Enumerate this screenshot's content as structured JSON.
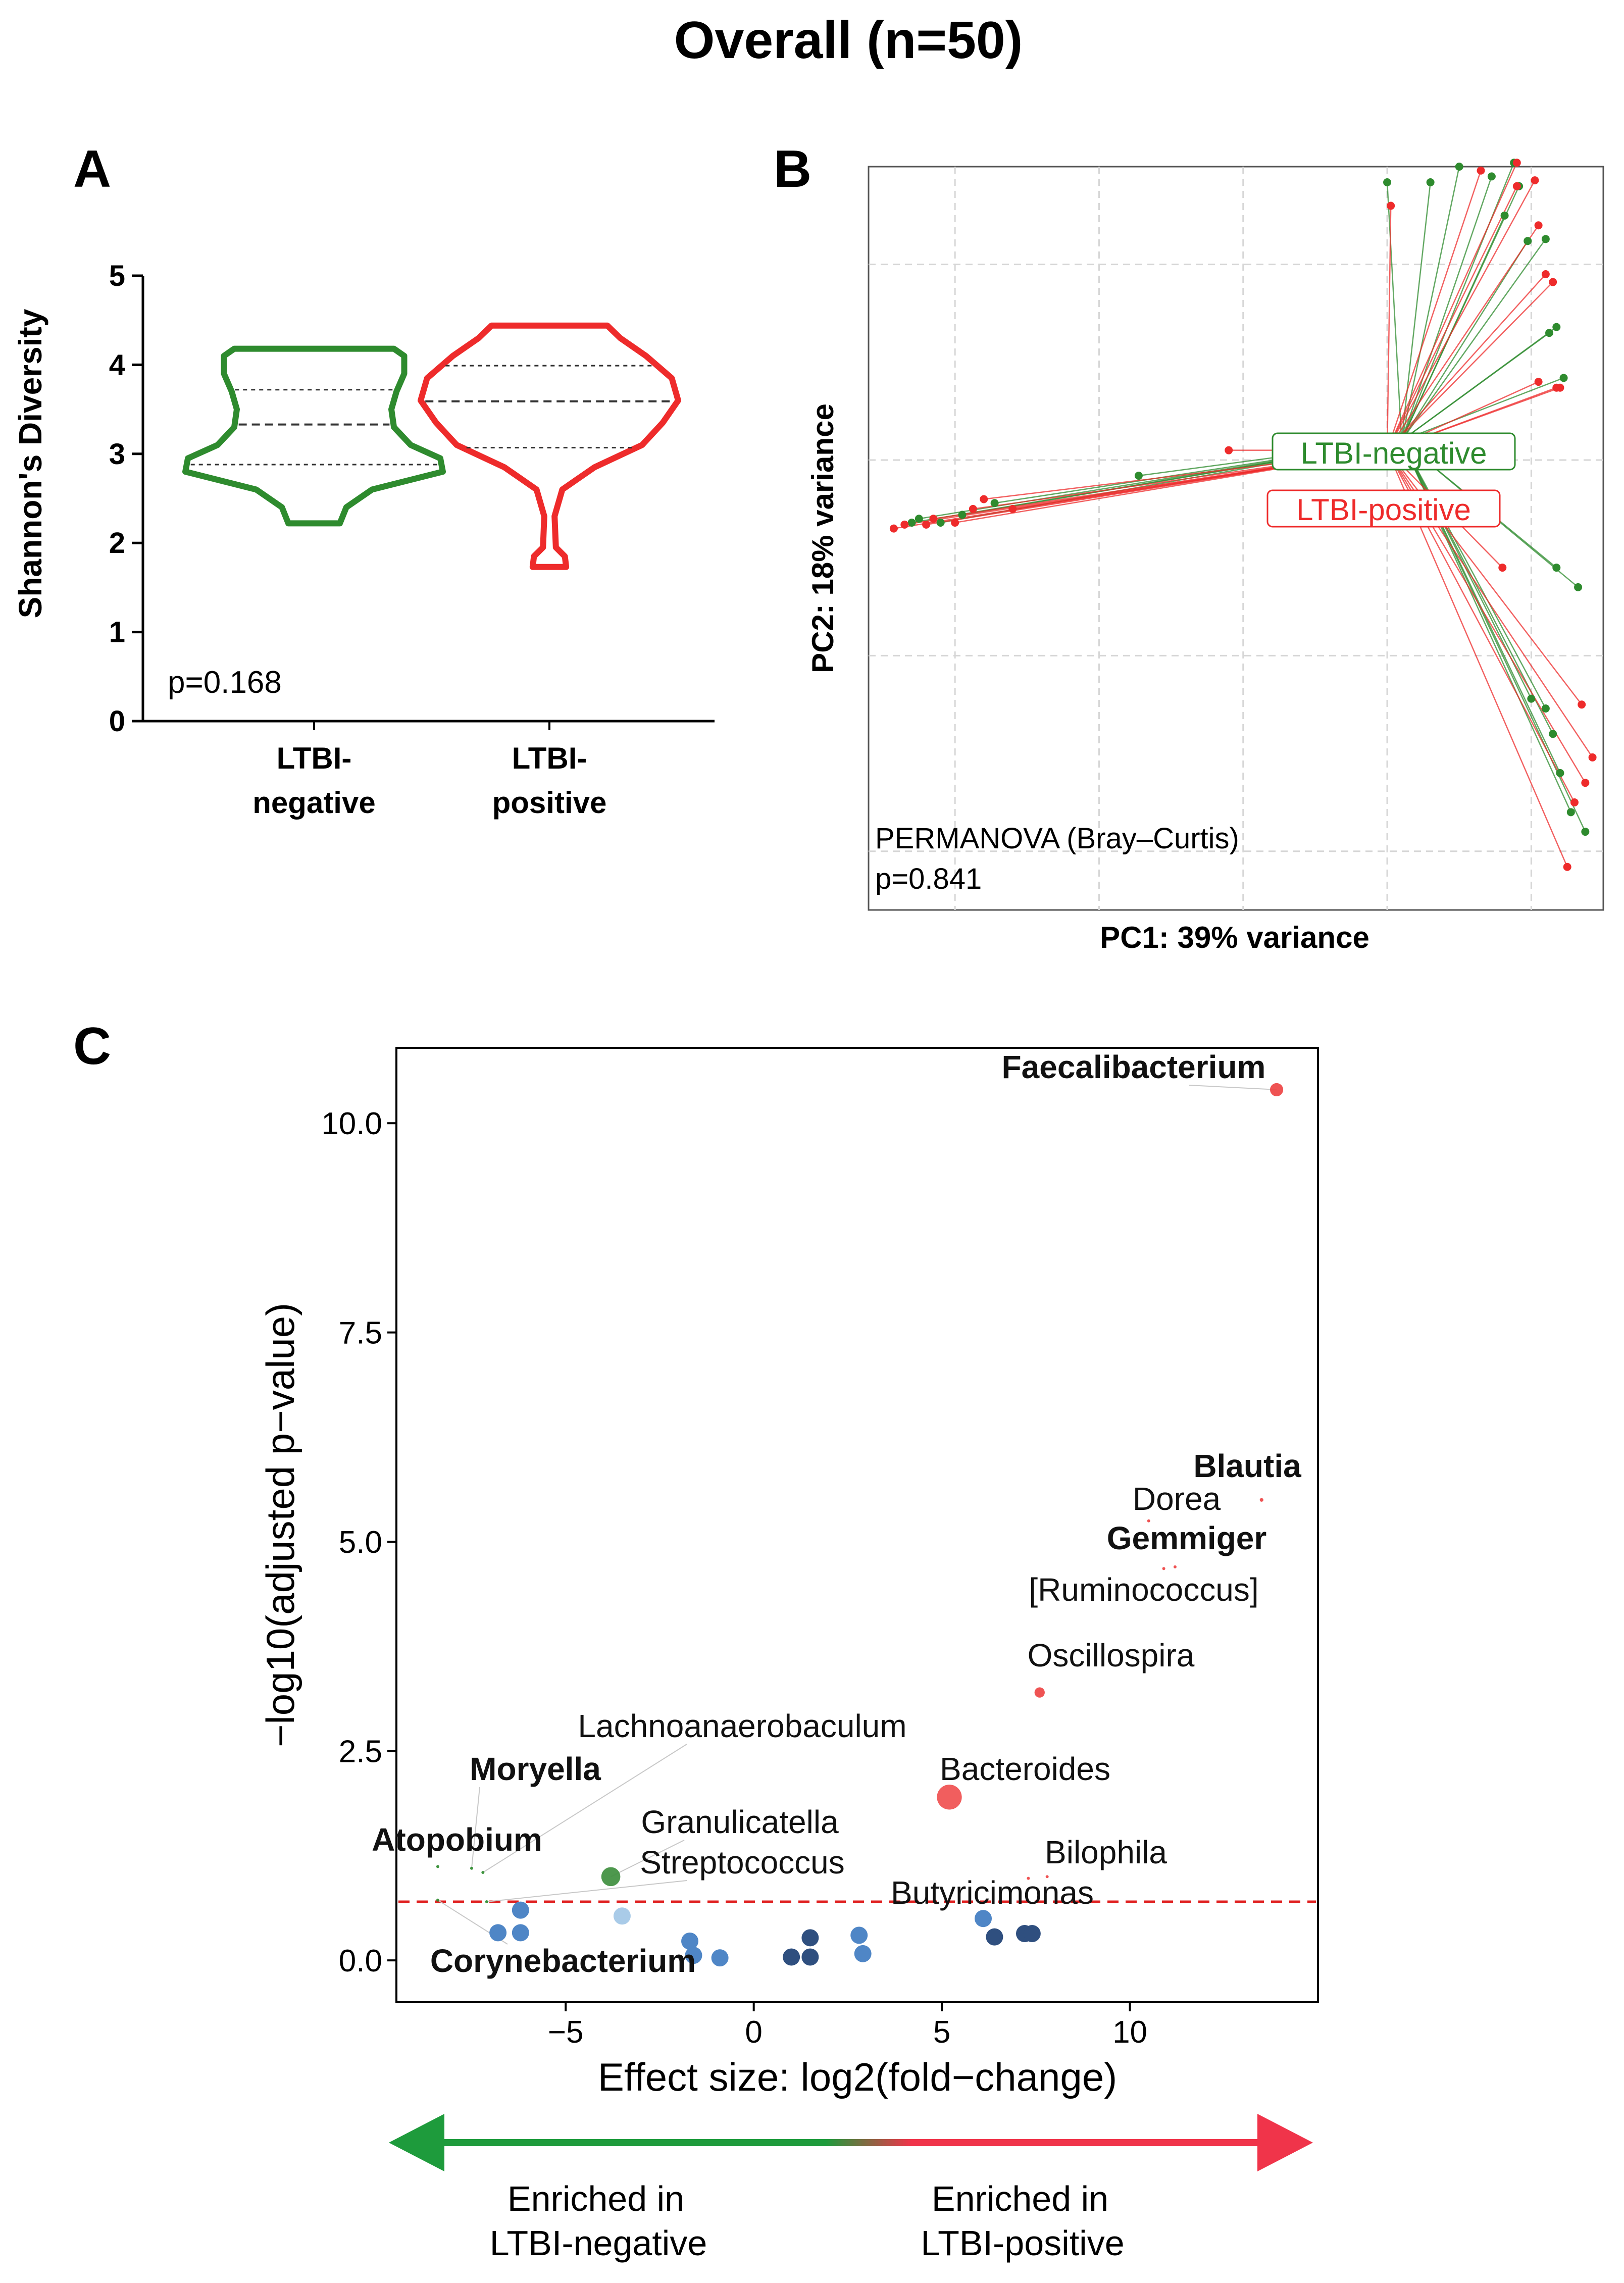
{
  "figure": {
    "title": "Overall (n=50)",
    "panel_labels": [
      "A",
      "B",
      "C"
    ],
    "colors": {
      "negative": "#2e8b2e",
      "positive": "#ee2b2b",
      "ns_dark": "#2f4f7f",
      "ns_mid": "#4f86c6",
      "ns_light": "#a9cbe8",
      "axis": "#000000",
      "grid": "#d0d0d0",
      "threshold": "#e02020"
    }
  },
  "chart_data": [
    {
      "panel": "A",
      "type": "violin",
      "title": "",
      "ylabel": "Shannon's Diversity",
      "ylim": [
        0,
        5
      ],
      "yticks": [
        "0",
        "1",
        "2",
        "3",
        "4",
        "5"
      ],
      "categories": [
        "LTBI-\nnegative",
        "LTBI-\npositive"
      ],
      "series": [
        {
          "name": "LTBI-negative",
          "color": "#2e8b2e",
          "median": 3.33,
          "q1": 2.88,
          "q3": 3.72,
          "profile": [
            [
              2.22,
              0.2
            ],
            [
              2.4,
              0.25
            ],
            [
              2.6,
              0.45
            ],
            [
              2.8,
              1.0
            ],
            [
              2.95,
              0.98
            ],
            [
              3.1,
              0.75
            ],
            [
              3.3,
              0.62
            ],
            [
              3.5,
              0.6
            ],
            [
              3.7,
              0.64
            ],
            [
              3.9,
              0.7
            ],
            [
              4.1,
              0.7
            ],
            [
              4.18,
              0.62
            ]
          ]
        },
        {
          "name": "LTBI-positive",
          "color": "#ee2b2b",
          "median": 3.59,
          "q1": 3.07,
          "q3": 3.99,
          "profile": [
            [
              1.73,
              0.13
            ],
            [
              1.85,
              0.12
            ],
            [
              1.95,
              0.05
            ],
            [
              2.3,
              0.04
            ],
            [
              2.6,
              0.1
            ],
            [
              2.85,
              0.35
            ],
            [
              3.1,
              0.72
            ],
            [
              3.35,
              0.88
            ],
            [
              3.6,
              1.0
            ],
            [
              3.85,
              0.95
            ],
            [
              4.1,
              0.75
            ],
            [
              4.3,
              0.55
            ],
            [
              4.44,
              0.45
            ]
          ]
        }
      ],
      "annotation": "p=0.168"
    },
    {
      "panel": "B",
      "type": "scatter",
      "title": "",
      "xlabel": "PC1: 39% variance",
      "ylabel": "PC2: 18% variance",
      "xlim": [
        -0.72,
        0.3
      ],
      "ylim": [
        -0.23,
        0.15
      ],
      "grid": true,
      "centroids": [
        {
          "name": "LTBI-negative",
          "x": 0.02,
          "y": 0.01,
          "color": "#2e8b2e"
        },
        {
          "name": "LTBI-positive",
          "x": 0.0,
          "y": 0.005,
          "color": "#ee2b2b"
        }
      ],
      "series": [
        {
          "name": "LTBI-negative",
          "color": "#2e8b2e",
          "points": [
            [
              0.0,
              0.142
            ],
            [
              0.06,
              0.142
            ],
            [
              0.1,
              0.15
            ],
            [
              0.176,
              0.152
            ],
            [
              0.145,
              0.145
            ],
            [
              0.183,
              0.14
            ],
            [
              0.163,
              0.125
            ],
            [
              0.195,
              0.112
            ],
            [
              0.22,
              0.113
            ],
            [
              0.225,
              0.065
            ],
            [
              0.235,
              0.068
            ],
            [
              0.245,
              0.042
            ],
            [
              0.235,
              -0.055
            ],
            [
              0.265,
              -0.065
            ],
            [
              0.2,
              -0.122
            ],
            [
              0.22,
              -0.127
            ],
            [
              0.23,
              -0.14
            ],
            [
              0.24,
              -0.16
            ],
            [
              0.255,
              -0.18
            ],
            [
              0.275,
              -0.19
            ],
            [
              -0.345,
              -0.008
            ],
            [
              -0.545,
              -0.022
            ],
            [
              -0.59,
              -0.028
            ],
            [
              -0.62,
              -0.032
            ],
            [
              -0.66,
              -0.032
            ],
            [
              -0.65,
              -0.03
            ]
          ]
        },
        {
          "name": "LTBI-positive",
          "color": "#ee2b2b",
          "points": [
            [
              0.005,
              0.13
            ],
            [
              0.13,
              0.148
            ],
            [
              0.18,
              0.152
            ],
            [
              0.205,
              0.143
            ],
            [
              0.18,
              0.14
            ],
            [
              0.22,
              0.095
            ],
            [
              0.23,
              0.091
            ],
            [
              0.21,
              0.12
            ],
            [
              0.235,
              0.037
            ],
            [
              0.24,
              0.037
            ],
            [
              0.16,
              -0.055
            ],
            [
              0.27,
              -0.125
            ],
            [
              0.285,
              -0.152
            ],
            [
              0.275,
              -0.165
            ],
            [
              0.26,
              -0.175
            ],
            [
              0.25,
              -0.208
            ],
            [
              0.21,
              0.04
            ],
            [
              -0.22,
              0.005
            ],
            [
              -0.52,
              -0.025
            ],
            [
              -0.56,
              -0.02
            ],
            [
              -0.6,
              -0.032
            ],
            [
              -0.63,
              -0.03
            ],
            [
              -0.67,
              -0.033
            ],
            [
              -0.685,
              -0.035
            ],
            [
              -0.64,
              -0.033
            ],
            [
              -0.575,
              -0.025
            ]
          ]
        }
      ],
      "annotations": [
        "PERMANOVA (Bray–Curtis)",
        "p=0.841"
      ]
    },
    {
      "panel": "C",
      "type": "scatter",
      "title": "",
      "xlabel": "Effect size: log2(fold−change)",
      "ylabel": "−log10(adjusted p−value)",
      "xlim": [
        -9.5,
        15
      ],
      "ylim": [
        -0.5,
        10.9
      ],
      "xticks": [
        -5,
        0,
        5,
        10
      ],
      "xtick_labels": [
        "−5",
        "0",
        "5",
        "10"
      ],
      "yticks": [
        0,
        2.5,
        5,
        7.5,
        10
      ],
      "ytick_labels": [
        "0.0",
        "2.5",
        "5.0",
        "7.5",
        "10.0"
      ],
      "threshold": 0.7,
      "significant": [
        {
          "name": "Faecalibacterium",
          "x": 13.9,
          "y": 10.4,
          "size": 9,
          "color": "#ee4444",
          "bold": true
        },
        {
          "name": "Blautia",
          "x": 13.5,
          "y": 5.5,
          "size": 2.5,
          "color": "#ee4444",
          "bold": true
        },
        {
          "name": "Dorea",
          "x": 10.5,
          "y": 5.25,
          "size": 1.5,
          "color": "#ee4444",
          "bold": false
        },
        {
          "name": "Gemmiger",
          "x": 11.2,
          "y": 4.7,
          "size": 1.5,
          "color": "#ee4444",
          "bold": true
        },
        {
          "name": "[Ruminococcus]",
          "x": 10.9,
          "y": 4.68,
          "size": 1.5,
          "color": "#ee4444",
          "bold": false
        },
        {
          "name": "Oscillospira",
          "x": 7.6,
          "y": 3.2,
          "size": 7,
          "color": "#ee4444",
          "bold": false
        },
        {
          "name": "Bacteroides",
          "x": 5.2,
          "y": 1.95,
          "size": 17,
          "color": "#f05050",
          "bold": false
        },
        {
          "name": "Bilophila",
          "x": 7.8,
          "y": 1.0,
          "size": 1.5,
          "color": "#ee4444",
          "bold": false
        },
        {
          "name": "Butyricimonas",
          "x": 7.3,
          "y": 0.98,
          "size": 1.5,
          "color": "#ee4444",
          "bold": false
        },
        {
          "name": "Lachnoanaerobaculum",
          "x": -7.2,
          "y": 1.05,
          "size": 2,
          "color": "#2e8b2e",
          "bold": false
        },
        {
          "name": "Moryella",
          "x": -7.5,
          "y": 1.1,
          "size": 2,
          "color": "#2e8b2e",
          "bold": true
        },
        {
          "name": "Atopobium",
          "x": -8.4,
          "y": 1.12,
          "size": 1.5,
          "color": "#2e8b2e",
          "bold": true
        },
        {
          "name": "Granulicatella",
          "x": -3.8,
          "y": 1.0,
          "size": 13,
          "color": "#3f8f3f",
          "bold": false
        },
        {
          "name": "Streptococcus",
          "x": -7.1,
          "y": 0.7,
          "size": 2,
          "color": "#2e8b2e",
          "bold": false
        },
        {
          "name": "Corynebacterium",
          "x": -8.4,
          "y": 0.72,
          "size": 1.5,
          "color": "#2e8b2e",
          "bold": true
        }
      ],
      "nonsignificant": [
        {
          "x": -6.2,
          "y": 0.6,
          "tone": "mid"
        },
        {
          "x": -6.8,
          "y": 0.33,
          "tone": "mid"
        },
        {
          "x": -6.2,
          "y": 0.33,
          "tone": "mid"
        },
        {
          "x": -3.5,
          "y": 0.53,
          "tone": "light"
        },
        {
          "x": -1.7,
          "y": 0.23,
          "tone": "mid"
        },
        {
          "x": -1.6,
          "y": 0.06,
          "tone": "mid"
        },
        {
          "x": -0.9,
          "y": 0.03,
          "tone": "mid"
        },
        {
          "x": 1.0,
          "y": 0.04,
          "tone": "dark"
        },
        {
          "x": 1.5,
          "y": 0.04,
          "tone": "dark"
        },
        {
          "x": 1.5,
          "y": 0.27,
          "tone": "dark"
        },
        {
          "x": 2.8,
          "y": 0.3,
          "tone": "mid"
        },
        {
          "x": 2.9,
          "y": 0.08,
          "tone": "mid"
        },
        {
          "x": 6.1,
          "y": 0.5,
          "tone": "mid"
        },
        {
          "x": 6.4,
          "y": 0.28,
          "tone": "dark"
        },
        {
          "x": 7.2,
          "y": 0.32,
          "tone": "dark"
        },
        {
          "x": 7.4,
          "y": 0.32,
          "tone": "dark"
        }
      ]
    }
  ],
  "arrow_legend": {
    "left_label": [
      "Enriched in",
      "LTBI-negative"
    ],
    "right_label": [
      "Enriched in",
      "LTBI-positive"
    ]
  }
}
